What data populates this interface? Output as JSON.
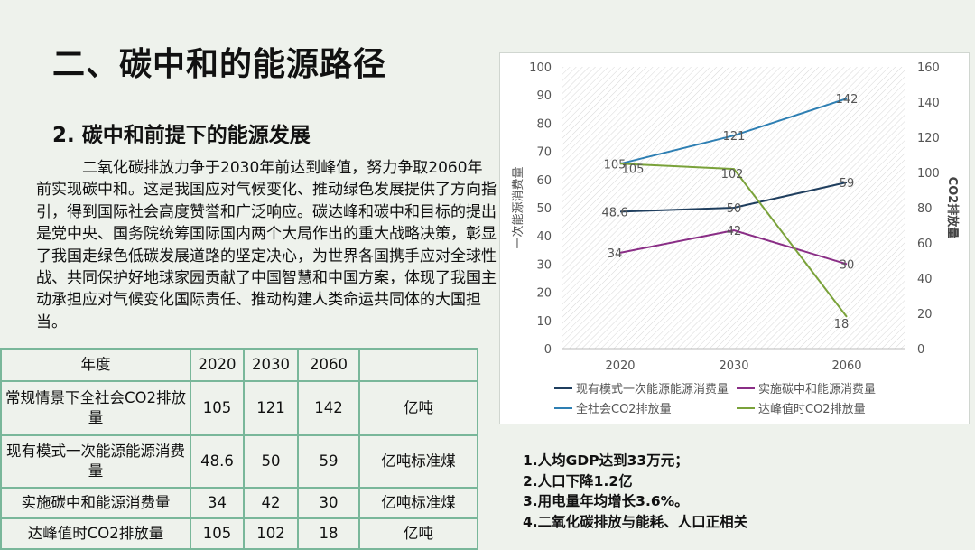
{
  "title": "二、碳中和的能源路径",
  "subtitle": "2. 碳中和前提下的能源发展",
  "paragraph": "二氧化碳排放力争于2030年前达到峰值，努力争取2060年前实现碳中和。这是我国应对气候变化、推动绿色发展提供了方向指引，得到国际社会高度赞誉和广泛响应。碳达峰和碳中和目标的提出是党中央、国务院统筹国际国内两个大局作出的重大战略决策，彰显了我国走绿色低碳发展道路的坚定决心，为世界各国携手应对全球性战、共同保护好地球家园贡献了中国智慧和中国方案，体现了我国主动承担应对气候变化国际责任、推动构建人类命运共同体的大国担当。",
  "table": {
    "header": [
      "年度",
      "2020",
      "2030",
      "2060",
      ""
    ],
    "rows": [
      [
        "常规情景下全社会CO2排放量",
        "105",
        "121",
        "142",
        "亿吨"
      ],
      [
        "现有模式一次能源能源消费量",
        "48.6",
        "50",
        "59",
        "亿吨标准煤"
      ],
      [
        "实施碳中和能源消费量",
        "34",
        "42",
        "30",
        "亿吨标准煤"
      ],
      [
        "达峰值时CO2排放量",
        "105",
        "102",
        "18",
        "亿吨"
      ]
    ]
  },
  "notes": [
    "1.人均GDP达到33万元；",
    "2.人口下降1.2亿",
    "3.用电量年均增长3.6%。",
    "4.二氧化碳排放与能耗、人口正相关"
  ],
  "chart_data": {
    "type": "line",
    "categories": [
      "2020",
      "2030",
      "2060"
    ],
    "ylabel_left": "一次能源消费量",
    "ylabel_right": "CO2排放量",
    "ylim_left": [
      0,
      100
    ],
    "ylim_right": [
      0,
      160
    ],
    "yticks_left": [
      "0",
      "10",
      "20",
      "30",
      "40",
      "50",
      "60",
      "70",
      "80",
      "90",
      "100"
    ],
    "yticks_right": [
      "0",
      "20",
      "40",
      "60",
      "80",
      "100",
      "120",
      "140",
      "160"
    ],
    "grid": false,
    "legend_position": "bottom",
    "series": [
      {
        "name": "现有模式一次能源能源消费量",
        "axis": "left",
        "color": "#1f3e5e",
        "values": [
          48.6,
          50,
          59
        ],
        "labels": [
          "48.6",
          "50",
          "59"
        ]
      },
      {
        "name": "实施碳中和能源消费量",
        "axis": "left",
        "color": "#8a2e86",
        "values": [
          34,
          42,
          30
        ],
        "labels": [
          "34",
          "42",
          "30"
        ]
      },
      {
        "name": "全社会CO2排放量",
        "axis": "right",
        "color": "#2e7fb3",
        "values": [
          105,
          121,
          142
        ],
        "labels": [
          "105",
          "121",
          "142"
        ]
      },
      {
        "name": "达峰值时CO2排放量",
        "axis": "right",
        "color": "#7aa23a",
        "values": [
          105,
          102,
          18
        ],
        "labels": [
          "105",
          "102",
          "18"
        ]
      }
    ]
  }
}
